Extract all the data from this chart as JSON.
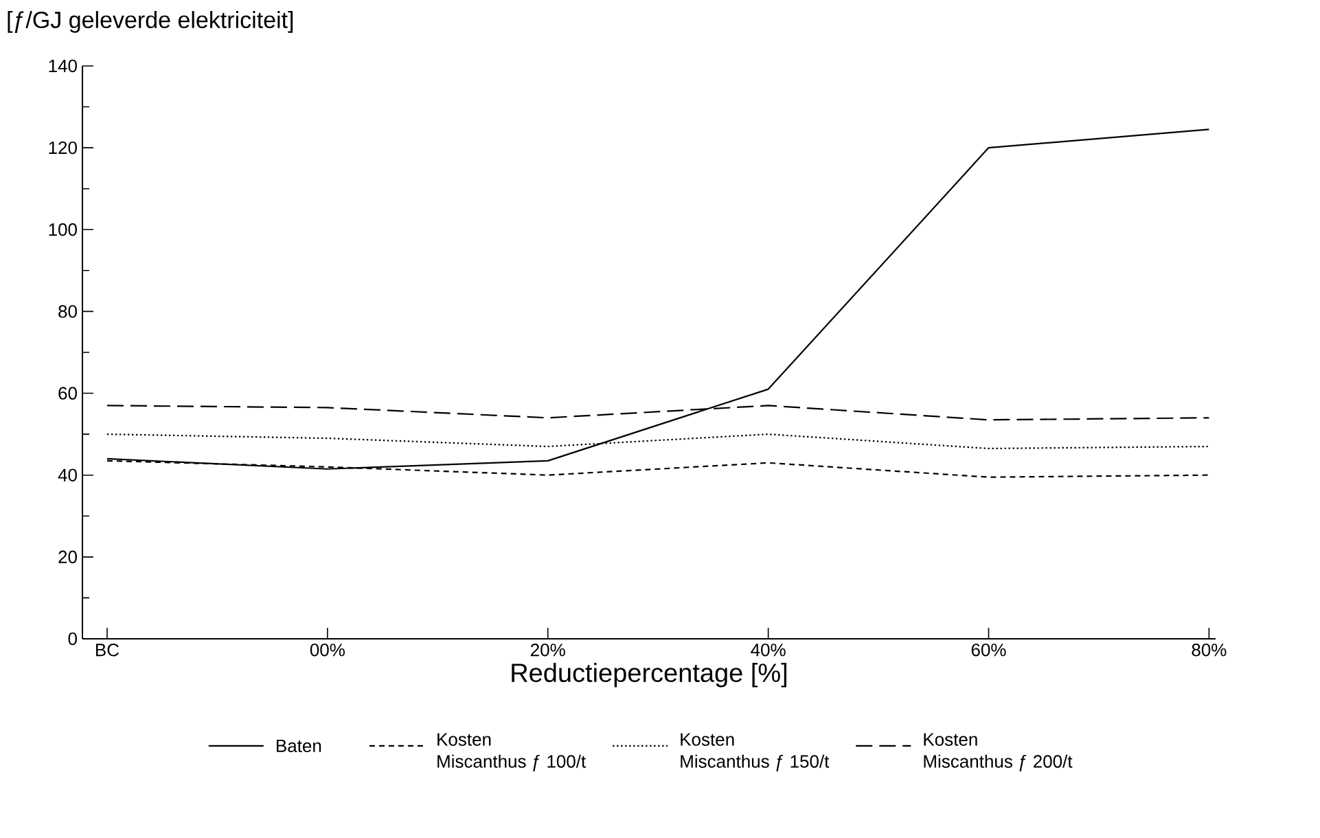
{
  "chart_data": {
    "type": "line",
    "ylabel": "[ƒ/GJ geleverde elektriciteit]",
    "xlabel": "Reductiepercentage [%]",
    "categories": [
      "BC",
      "00%",
      "20%",
      "40%",
      "60%",
      "80%"
    ],
    "ylim": [
      0,
      140
    ],
    "yticks": [
      0,
      20,
      40,
      60,
      80,
      100,
      120,
      140
    ],
    "legend": "bottom",
    "marker": "none",
    "series": [
      {
        "name": "Baten",
        "color": "#000000",
        "line_style": "solid",
        "values": [
          44,
          41.5,
          43.5,
          61,
          120,
          124.5
        ]
      },
      {
        "name": "Kosten Miscanthus ƒ 100/t",
        "color": "#000000",
        "line_style": "dashed",
        "values": [
          43.5,
          42,
          40,
          43,
          39.5,
          40
        ]
      },
      {
        "name": "Kosten Miscanthus ƒ 150/t",
        "color": "#000000",
        "line_style": "dotted",
        "values": [
          50,
          49,
          47,
          50,
          46.5,
          47
        ]
      },
      {
        "name": "Kosten Miscanthus ƒ 200/t",
        "color": "#000000",
        "line_style": "dashed",
        "values": [
          57,
          56.5,
          54,
          57,
          53.5,
          54
        ]
      }
    ]
  }
}
